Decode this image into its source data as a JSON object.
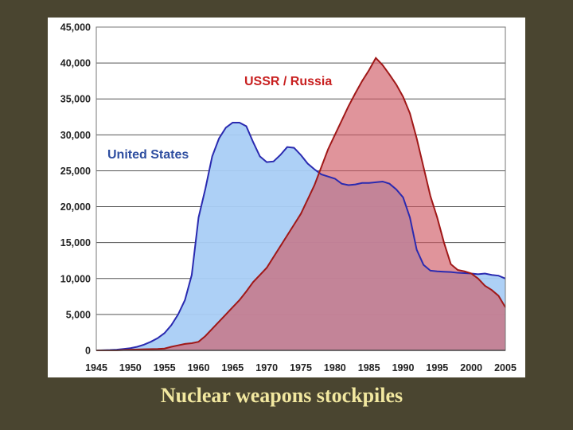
{
  "caption": "Nuclear weapons stockpiles",
  "chart_data": {
    "type": "area",
    "title": "",
    "xlabel": "",
    "ylabel": "",
    "xlim": [
      1945,
      2005
    ],
    "ylim": [
      0,
      45000
    ],
    "grid": true,
    "x_ticks": [
      "1945",
      "1950",
      "1955",
      "1960",
      "1965",
      "1970",
      "1975",
      "1980",
      "1985",
      "1990",
      "1995",
      "2000",
      "2005"
    ],
    "y_ticks": [
      "0",
      "5,000",
      "10,000",
      "15,000",
      "20,000",
      "25,000",
      "30,000",
      "35,000",
      "40,000",
      "45,000"
    ],
    "series": [
      {
        "name": "United States",
        "color": "#2a2ab0",
        "fill": "#a9cdf5",
        "label_color": "#2e4ea0",
        "points": [
          [
            1945,
            0
          ],
          [
            1947,
            50
          ],
          [
            1948,
            100
          ],
          [
            1949,
            200
          ],
          [
            1950,
            300
          ],
          [
            1951,
            500
          ],
          [
            1952,
            800
          ],
          [
            1953,
            1200
          ],
          [
            1954,
            1700
          ],
          [
            1955,
            2400
          ],
          [
            1956,
            3500
          ],
          [
            1957,
            5000
          ],
          [
            1958,
            7000
          ],
          [
            1959,
            10500
          ],
          [
            1960,
            18500
          ],
          [
            1961,
            22500
          ],
          [
            1962,
            27000
          ],
          [
            1963,
            29500
          ],
          [
            1964,
            31000
          ],
          [
            1965,
            31700
          ],
          [
            1966,
            31700
          ],
          [
            1967,
            31200
          ],
          [
            1968,
            29000
          ],
          [
            1969,
            27000
          ],
          [
            1970,
            26200
          ],
          [
            1971,
            26300
          ],
          [
            1972,
            27200
          ],
          [
            1973,
            28300
          ],
          [
            1974,
            28200
          ],
          [
            1975,
            27200
          ],
          [
            1976,
            26000
          ],
          [
            1977,
            25200
          ],
          [
            1978,
            24500
          ],
          [
            1979,
            24200
          ],
          [
            1980,
            23900
          ],
          [
            1981,
            23200
          ],
          [
            1982,
            23000
          ],
          [
            1983,
            23100
          ],
          [
            1984,
            23300
          ],
          [
            1985,
            23300
          ],
          [
            1986,
            23400
          ],
          [
            1987,
            23500
          ],
          [
            1988,
            23200
          ],
          [
            1989,
            22400
          ],
          [
            1990,
            21300
          ],
          [
            1991,
            18500
          ],
          [
            1992,
            14000
          ],
          [
            1993,
            11900
          ],
          [
            1994,
            11100
          ],
          [
            1995,
            11000
          ],
          [
            1996,
            10950
          ],
          [
            1997,
            10900
          ],
          [
            1998,
            10800
          ],
          [
            1999,
            10750
          ],
          [
            2000,
            10700
          ],
          [
            2001,
            10600
          ],
          [
            2002,
            10700
          ],
          [
            2003,
            10500
          ],
          [
            2004,
            10400
          ],
          [
            2005,
            10000
          ]
        ]
      },
      {
        "name": "USSR / Russia",
        "color": "#a01818",
        "fill": "#d05a66",
        "label_color": "#c82020",
        "points": [
          [
            1945,
            0
          ],
          [
            1948,
            0
          ],
          [
            1949,
            50
          ],
          [
            1950,
            100
          ],
          [
            1952,
            150
          ],
          [
            1954,
            200
          ],
          [
            1955,
            250
          ],
          [
            1956,
            500
          ],
          [
            1957,
            700
          ],
          [
            1958,
            900
          ],
          [
            1959,
            1000
          ],
          [
            1960,
            1200
          ],
          [
            1961,
            2000
          ],
          [
            1962,
            3000
          ],
          [
            1963,
            4000
          ],
          [
            1964,
            5000
          ],
          [
            1965,
            6000
          ],
          [
            1966,
            7000
          ],
          [
            1967,
            8200
          ],
          [
            1968,
            9500
          ],
          [
            1969,
            10500
          ],
          [
            1970,
            11500
          ],
          [
            1971,
            13000
          ],
          [
            1972,
            14500
          ],
          [
            1973,
            16000
          ],
          [
            1974,
            17500
          ],
          [
            1975,
            19000
          ],
          [
            1976,
            21000
          ],
          [
            1977,
            23000
          ],
          [
            1978,
            25500
          ],
          [
            1979,
            28000
          ],
          [
            1980,
            30000
          ],
          [
            1981,
            32000
          ],
          [
            1982,
            34000
          ],
          [
            1983,
            35800
          ],
          [
            1984,
            37500
          ],
          [
            1985,
            39000
          ],
          [
            1986,
            40700
          ],
          [
            1987,
            39700
          ],
          [
            1988,
            38400
          ],
          [
            1989,
            37000
          ],
          [
            1990,
            35300
          ],
          [
            1991,
            33000
          ],
          [
            1992,
            29500
          ],
          [
            1993,
            25500
          ],
          [
            1994,
            21500
          ],
          [
            1995,
            18500
          ],
          [
            1996,
            15000
          ],
          [
            1997,
            12000
          ],
          [
            1998,
            11200
          ],
          [
            1999,
            11000
          ],
          [
            2000,
            10700
          ],
          [
            2001,
            10000
          ],
          [
            2002,
            9000
          ],
          [
            2003,
            8400
          ],
          [
            2004,
            7600
          ],
          [
            2005,
            6000
          ]
        ]
      }
    ]
  }
}
